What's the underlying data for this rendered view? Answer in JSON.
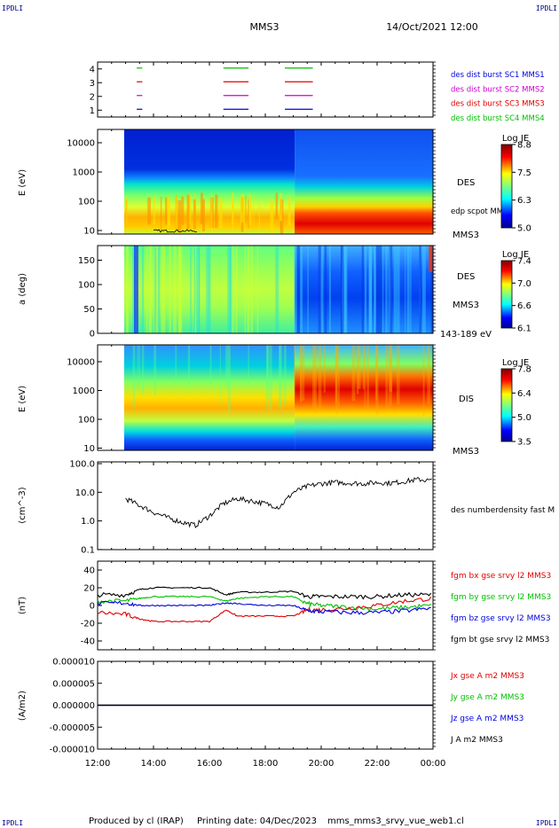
{
  "header": {
    "corner_tl": "IPDLI",
    "corner_tr": "IPDLI",
    "corner_bl": "IPDLI",
    "corner_br": "IPDLI",
    "spacecraft": "MMS3",
    "datetime": "14/Oct/2021 12:00"
  },
  "footer": {
    "produced_by": "Produced by cl (IRAP)",
    "printing_date": "Printing date: 04/Dec/2023",
    "filename": "mms_mms3_srvy_vue_web1.cl"
  },
  "time_axis": {
    "ticks": [
      "12:00",
      "14:00",
      "16:00",
      "18:00",
      "20:00",
      "22:00",
      "00:00"
    ]
  },
  "colors": {
    "red": "#e00000",
    "green": "#00c000",
    "blue": "#0000e0",
    "black": "#000000",
    "magenta": "#d000d0"
  },
  "chart_data": [
    {
      "type": "line",
      "panel": "burst-coverage",
      "ylim": [
        0.5,
        4.5
      ],
      "yticks": [
        "4",
        "3",
        "2",
        "1"
      ],
      "legend": [
        {
          "label": "des dist burst SC1 MMS1",
          "color": "#0000e0"
        },
        {
          "label": "des dist burst SC2 MMS2",
          "color": "#d000d0"
        },
        {
          "label": "des dist burst SC3 MMS3",
          "color": "#e00000"
        },
        {
          "label": "des dist burst SC4 MMS4",
          "color": "#00c000"
        }
      ],
      "segments_hours": [
        [
          13.4,
          13.6
        ],
        [
          16.5,
          17.4
        ],
        [
          18.7,
          19.7
        ]
      ]
    },
    {
      "type": "heatmap",
      "panel": "des-energy",
      "ylabel": "E (eV)",
      "yticks": [
        "10000",
        "1000",
        "100",
        "10"
      ],
      "instrument": "DES",
      "spacecraft": "MMS3",
      "overlay": "edp scpot MMS3",
      "colorbar": {
        "title": "Log JE",
        "ticks": [
          "8.8",
          "7.5",
          "6.3",
          "5.0"
        ]
      }
    },
    {
      "type": "heatmap",
      "panel": "des-pitch",
      "ylabel": "a (deg)",
      "yticks": [
        "150",
        "100",
        "50",
        "0"
      ],
      "instrument": "DES",
      "spacecraft": "MMS3",
      "energy_range": "143-189 eV",
      "colorbar": {
        "title": "Log JE",
        "ticks": [
          "7.4",
          "7.0",
          "6.6",
          "6.1"
        ]
      }
    },
    {
      "type": "heatmap",
      "panel": "dis-energy",
      "ylabel": "E (eV)",
      "yticks": [
        "10000",
        "1000",
        "100",
        "10"
      ],
      "instrument": "DIS",
      "spacecraft": "MMS3",
      "colorbar": {
        "title": "Log JE",
        "ticks": [
          "7.8",
          "6.4",
          "5.0",
          "3.5"
        ]
      }
    },
    {
      "type": "line",
      "panel": "density",
      "ylabel": "(cm^-3)",
      "yscale": "log",
      "ylim": [
        0.1,
        100
      ],
      "yticks": [
        "100.0",
        "10.0",
        "1.0",
        "0.1"
      ],
      "series": [
        {
          "name": "des numberdensity fast M",
          "color": "#000000",
          "x": [
            13.0,
            13.5,
            14.0,
            14.5,
            15.0,
            15.5,
            16.0,
            16.5,
            17.0,
            17.5,
            18.0,
            18.5,
            19.0,
            19.5,
            20.0,
            20.5,
            21.0,
            21.5,
            22.0,
            22.5,
            23.0,
            23.5,
            24.0
          ],
          "y": [
            6,
            3.5,
            2.0,
            1.3,
            0.9,
            0.7,
            1.5,
            4.0,
            6.0,
            5.0,
            4.0,
            3.0,
            10,
            16,
            20,
            22,
            21,
            20,
            22,
            21,
            24,
            28,
            25
          ]
        }
      ]
    },
    {
      "type": "line",
      "panel": "magnetic-field",
      "ylabel": "(nT)",
      "ylim": [
        -50,
        50
      ],
      "yticks": [
        "40",
        "20",
        "0",
        "-20",
        "-40"
      ],
      "series": [
        {
          "name": "fgm bx gse srvy l2 MMS3",
          "color": "#e00000",
          "x": [
            12.0,
            13.0,
            13.5,
            14.0,
            15.0,
            16.0,
            16.6,
            17.0,
            18.0,
            19.0,
            19.5,
            20.0,
            21.0,
            22.0,
            23.0,
            24.0
          ],
          "y": [
            -8,
            -10,
            -15,
            -18,
            -18,
            -18,
            -5,
            -12,
            -12,
            -12,
            -5,
            -5,
            -3,
            0,
            5,
            8
          ]
        },
        {
          "name": "fgm by gse srvy l2 MMS3",
          "color": "#00c000",
          "x": [
            12.0,
            13.0,
            13.5,
            14.0,
            15.0,
            16.0,
            16.6,
            17.0,
            18.0,
            19.0,
            19.5,
            20.0,
            21.0,
            22.0,
            23.0,
            24.0
          ],
          "y": [
            5,
            5,
            8,
            10,
            10,
            10,
            5,
            8,
            10,
            10,
            2,
            0,
            -2,
            -4,
            -2,
            0
          ]
        },
        {
          "name": "fgm bz gse srvy l2 MMS3",
          "color": "#0000e0",
          "x": [
            12.0,
            13.0,
            13.5,
            14.0,
            15.0,
            16.0,
            16.6,
            17.0,
            18.0,
            19.0,
            19.5,
            20.0,
            21.0,
            22.0,
            23.0,
            24.0
          ],
          "y": [
            2,
            3,
            0,
            0,
            0,
            0,
            3,
            2,
            0,
            0,
            -6,
            -7,
            -8,
            -8,
            -6,
            -3
          ]
        },
        {
          "name": "fgm bt gse srvy l2 MMS3",
          "color": "#000000",
          "x": [
            12.0,
            13.0,
            13.5,
            14.0,
            15.0,
            16.0,
            16.6,
            17.0,
            18.0,
            19.0,
            19.5,
            20.0,
            21.0,
            22.0,
            23.0,
            24.0
          ],
          "y": [
            12,
            12,
            18,
            20,
            20,
            20,
            12,
            15,
            15,
            16,
            10,
            10,
            10,
            10,
            12,
            12
          ]
        }
      ]
    },
    {
      "type": "line",
      "panel": "current-density",
      "ylabel": "(A/m2)",
      "ylim": [
        -0.0001,
        0.0001
      ],
      "yticks": [
        "0.000010",
        "0.000005",
        "0.000000",
        "-0.000005",
        "-0.000010"
      ],
      "series": [
        {
          "name": "Jx gse A m2 MMS3",
          "color": "#e00000",
          "x": [
            12.0,
            24.0
          ],
          "y": [
            0,
            0
          ]
        },
        {
          "name": "Jy gse A m2 MMS3",
          "color": "#00c000",
          "x": [
            12.0,
            24.0
          ],
          "y": [
            0,
            0
          ]
        },
        {
          "name": "Jz gse A m2 MMS3",
          "color": "#0000e0",
          "x": [
            12.0,
            24.0
          ],
          "y": [
            0,
            0
          ]
        },
        {
          "name": "J A m2 MMS3",
          "color": "#000000",
          "x": [
            12.0,
            24.0
          ],
          "y": [
            0,
            0
          ]
        }
      ]
    }
  ]
}
